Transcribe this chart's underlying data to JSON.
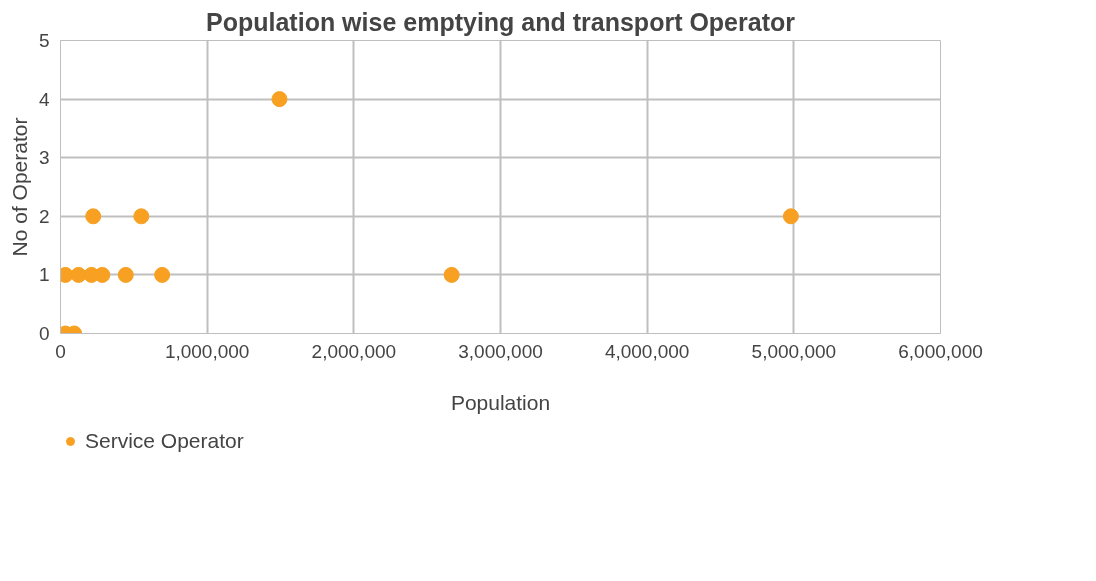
{
  "chart_data": {
    "type": "scatter",
    "title": "Population wise emptying and transport Operator",
    "xlabel": "Population",
    "ylabel": "No of Operator",
    "series": [
      {
        "name": "Service Operator",
        "color": "#f7a021",
        "x": [
          33000,
          123000,
          211000,
          285000,
          445000,
          693000,
          223000,
          551000,
          33000,
          93000,
          1493000,
          2667000,
          4980000
        ],
        "values": [
          1,
          1,
          1,
          1,
          1,
          1,
          2,
          2,
          0,
          0,
          4,
          1,
          2
        ]
      }
    ],
    "xlim": [
      0,
      6000000
    ],
    "xticks": [
      {
        "value": 0,
        "label": "0"
      },
      {
        "value": 1000000,
        "label": "1,000,000"
      },
      {
        "value": 2000000,
        "label": "2,000,000"
      },
      {
        "value": 3000000,
        "label": "3,000,000"
      },
      {
        "value": 4000000,
        "label": "4,000,000"
      },
      {
        "value": 5000000,
        "label": "5,000,000"
      },
      {
        "value": 6000000,
        "label": "6,000,000"
      }
    ],
    "ylim": [
      0,
      5
    ],
    "yticks": [
      0,
      1,
      2,
      3,
      4,
      5
    ],
    "grid": true,
    "legend": "bottom left",
    "marker": "circle"
  }
}
